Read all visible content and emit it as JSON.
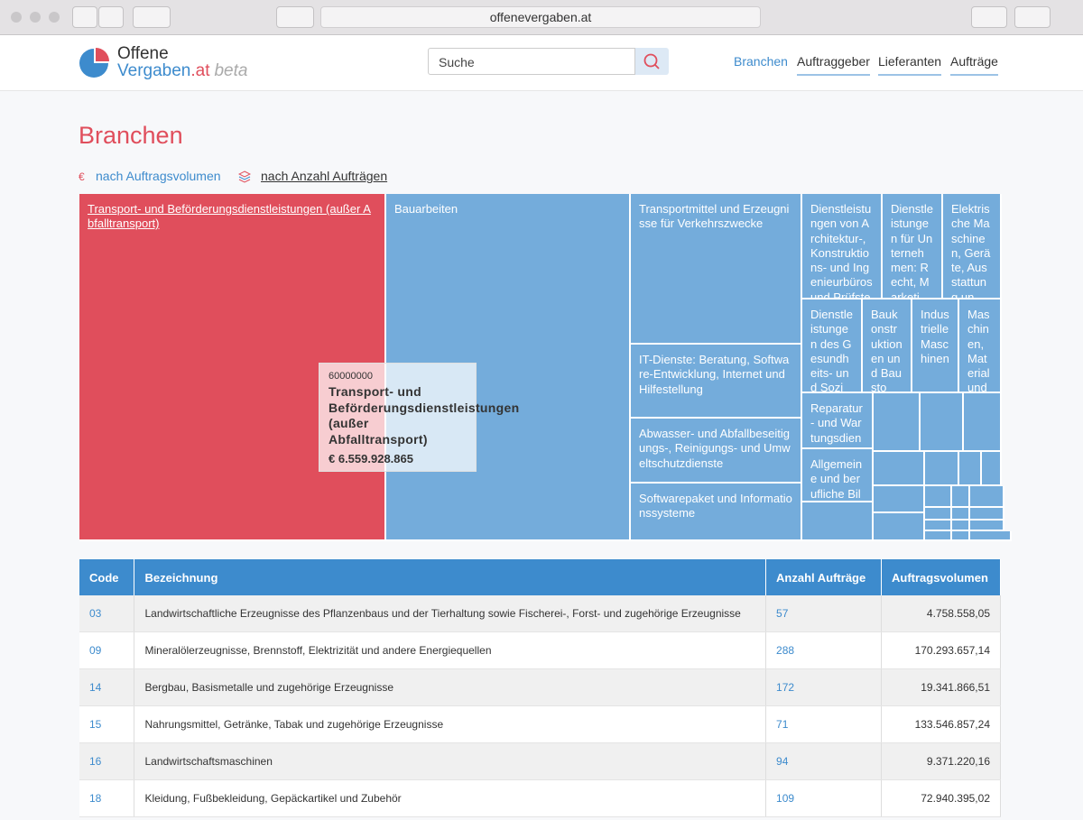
{
  "browser": {
    "url": "offenevergaben.at"
  },
  "header": {
    "logo_line1": "Offene",
    "logo_line2": "Vergaben",
    "logo_tld": ".at",
    "logo_badge": "beta",
    "search_placeholder": "Suche",
    "nav": [
      "Branchen",
      "Auftraggeber",
      "Lieferanten",
      "Aufträge"
    ]
  },
  "page": {
    "title": "Branchen",
    "toggle_icon": "€",
    "toggle": [
      "nach Auftragsvolumen",
      "nach Anzahl Aufträgen"
    ]
  },
  "treemap": {
    "tiles": [
      {
        "label": "Transport- und Beförderungsdienstleistungen (außer Abfalltransport)"
      },
      {
        "label": "Bauarbeiten"
      },
      {
        "label": "Transportmittel und Erzeugnisse für Verkehrszwecke"
      },
      {
        "label": "IT-Dienste: Beratung, Software-Entwicklung, Internet und Hilfestellung"
      },
      {
        "label": "Abwasser- und Abfallbeseitigungs-, Reinigungs- und Umweltschutzdienste"
      },
      {
        "label": "Softwarepaket und Informationssysteme"
      },
      {
        "label": "Dienstleistungen von Architektur-, Konstruktions- und Ingenieurbüros und Prüfste"
      },
      {
        "label": "Dienstleistungen für Unternehmen: Recht, Marketi"
      },
      {
        "label": "Elektrische Maschinen, Geräte, Ausstattung un"
      },
      {
        "label": "Dienstleistungen des Gesundheits- und Sozi"
      },
      {
        "label": "Baukonstruktionen und Bausto"
      },
      {
        "label": "Industrielle Maschinen"
      },
      {
        "label": "Maschinen, Material und"
      },
      {
        "label": "Reparatur- und Wartungsdien"
      },
      {
        "label": "Allgemeine und berufliche Bil"
      }
    ],
    "tooltip": {
      "code": "60000000",
      "label": "Transport- und Beförderungsdienstleistungen (außer Abfalltransport)",
      "value": "€ 6.559.928.865"
    }
  },
  "table": {
    "columns": [
      "Code",
      "Bezeichnung",
      "Anzahl Aufträge",
      "Auftragsvolumen"
    ],
    "rows": [
      [
        "03",
        "Landwirtschaftliche Erzeugnisse des Pflanzenbaus und der Tierhaltung sowie Fischerei-, Forst- und zugehörige Erzeugnisse",
        "57",
        "4.758.558,05"
      ],
      [
        "09",
        "Mineralölerzeugnisse, Brennstoff, Elektrizität und andere Energiequellen",
        "288",
        "170.293.657,14"
      ],
      [
        "14",
        "Bergbau, Basismetalle und zugehörige Erzeugnisse",
        "172",
        "19.341.866,51"
      ],
      [
        "15",
        "Nahrungsmittel, Getränke, Tabak und zugehörige Erzeugnisse",
        "71",
        "133.546.857,24"
      ],
      [
        "16",
        "Landwirtschaftsmaschinen",
        "94",
        "9.371.220,16"
      ],
      [
        "18",
        "Kleidung, Fußbekleidung, Gepäckartikel und Zubehör",
        "109",
        "72.940.395,02"
      ]
    ]
  }
}
